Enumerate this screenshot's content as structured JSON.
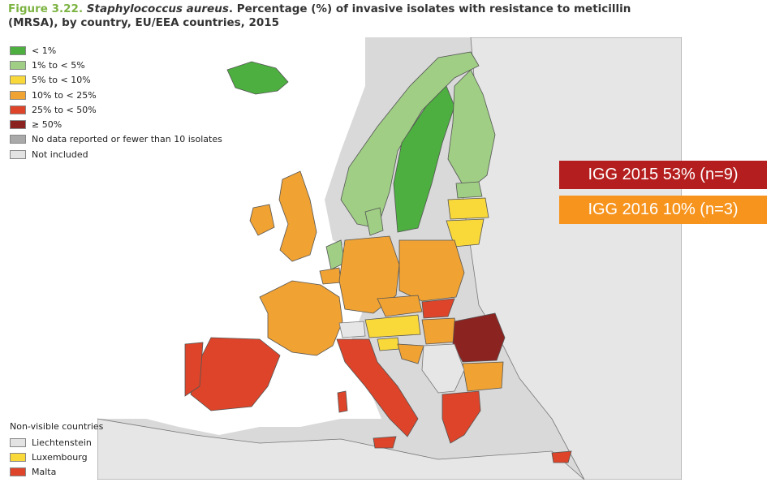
{
  "title": {
    "figure": "Figure 3.22.",
    "species": "Staphylococcus aureus",
    "rest": ". Percentage (%) of invasive isolates with resistance to meticillin (MRSA), by country, EU/EEA countries, 2015"
  },
  "legend": [
    {
      "label": "< 1%",
      "color": "#4caf3f"
    },
    {
      "label": "1% to < 5%",
      "color": "#9fce84"
    },
    {
      "label": "5% to < 10%",
      "color": "#f9d83a"
    },
    {
      "label": "10% to < 25%",
      "color": "#f0a233"
    },
    {
      "label": "25% to < 50%",
      "color": "#dd4429"
    },
    {
      "label": "≥ 50%",
      "color": "#8b2321"
    },
    {
      "label": "No data reported or fewer than 10 isolates",
      "color": "#a9a9a9"
    },
    {
      "label": "Not included",
      "color": "#e3e3e3"
    }
  ],
  "non_visible": {
    "title": "Non-visible countries",
    "items": [
      {
        "label": "Liechtenstein",
        "color": "#e3e3e3"
      },
      {
        "label": "Luxembourg",
        "color": "#f9d83a"
      },
      {
        "label": "Malta",
        "color": "#dd4429"
      }
    ]
  },
  "badges": [
    {
      "text": "IGG 2015 53% (n=9)",
      "color": "#b51e1e"
    },
    {
      "text": "IGG 2016 10% (n=3)",
      "color": "#f7941d"
    }
  ]
}
